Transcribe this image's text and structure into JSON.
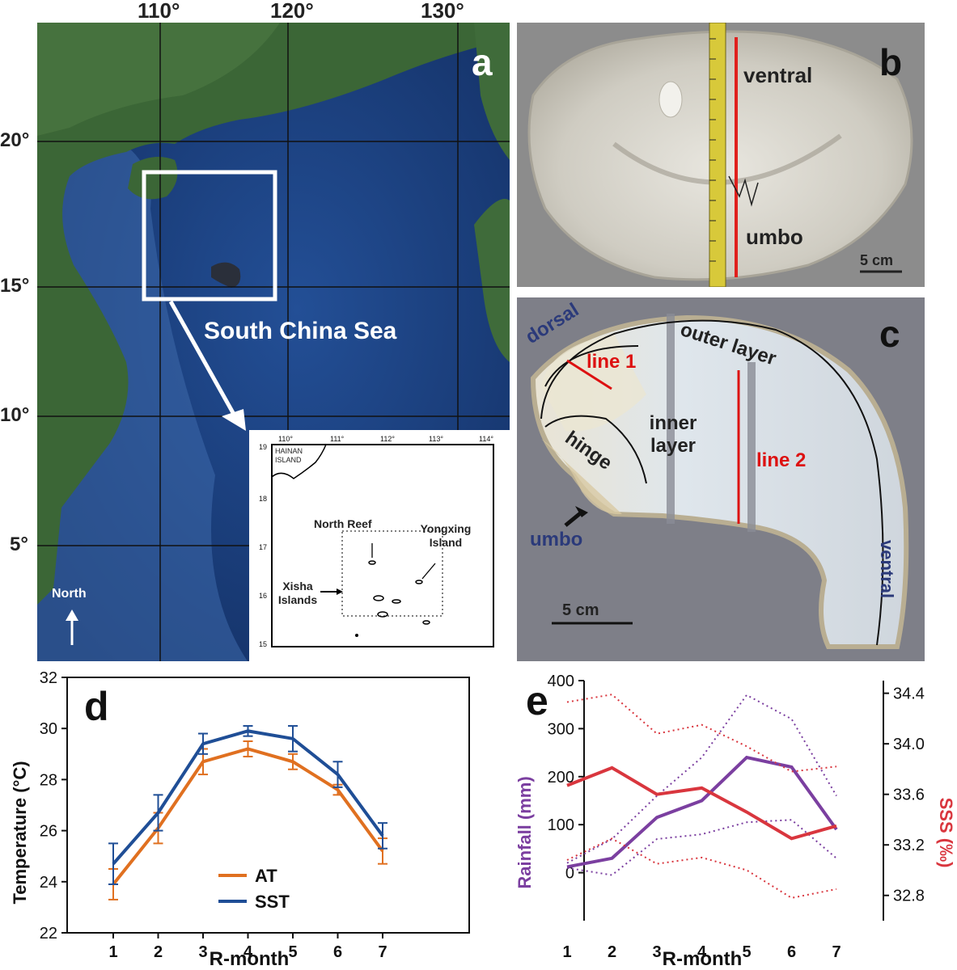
{
  "panel_a": {
    "letter": "a",
    "lon_labels": [
      "110°",
      "120°",
      "130°"
    ],
    "lat_labels": [
      "20°",
      "15°",
      "10°",
      "5°"
    ],
    "sea_label": "South China Sea",
    "north_label": "North",
    "inset": {
      "lon_ticks": [
        "110°",
        "111°",
        "112°",
        "113°",
        "114°"
      ],
      "lat_ticks": [
        "19",
        "18",
        "17",
        "16",
        "15"
      ],
      "hainan": "HAINAN ISLAND",
      "north_reef": "North Reef",
      "yongxing": "Yongxing Island",
      "xisha": "Xisha Islands"
    },
    "colors": {
      "land": "#3f6b3a",
      "sea": "#1b3f7a",
      "box": "#ffffff"
    }
  },
  "panel_b": {
    "letter": "b",
    "ventral": "ventral",
    "umbo": "umbo",
    "scale": "5 cm"
  },
  "panel_c": {
    "letter": "c",
    "dorsal": "dorsal",
    "line1": "line 1",
    "outer_layer": "outer layer",
    "inner_layer": "inner layer",
    "hinge": "hinge",
    "line2": "line 2",
    "umbo": "umbo",
    "ventral": "ventral",
    "scale": "5 cm"
  },
  "chart_data": [
    {
      "panel": "d",
      "type": "line",
      "xlabel": "R-month",
      "ylabel": "Temperature (°C)",
      "x": [
        1,
        2,
        3,
        4,
        5,
        6,
        7
      ],
      "ylim": [
        22,
        32
      ],
      "yticks": [
        22,
        24,
        26,
        28,
        30,
        32
      ],
      "legend_position": "bottom-center",
      "series": [
        {
          "name": "AT",
          "color": "#e07020",
          "values": [
            23.9,
            26.1,
            28.7,
            29.2,
            28.7,
            27.6,
            25.2
          ],
          "err": [
            0.6,
            0.6,
            0.5,
            0.3,
            0.3,
            0.2,
            0.5
          ]
        },
        {
          "name": "SST",
          "color": "#1f4e96",
          "values": [
            24.7,
            26.7,
            29.4,
            29.9,
            29.6,
            28.2,
            25.8
          ],
          "err": [
            0.8,
            0.7,
            0.4,
            0.2,
            0.5,
            0.5,
            0.5
          ]
        }
      ]
    },
    {
      "panel": "e",
      "type": "line",
      "xlabel": "R-month",
      "ylabel_left": "Rainfall (mm)",
      "ylabel_right": "SSS (‰)",
      "x": [
        1,
        2,
        3,
        4,
        5,
        6,
        7
      ],
      "ylim_left": [
        -100,
        400
      ],
      "yticks_left": [
        0,
        100,
        200,
        300,
        400
      ],
      "ylim_right": [
        32.6,
        34.5
      ],
      "yticks_right": [
        32.8,
        33.2,
        33.6,
        34.0,
        34.4
      ],
      "series": [
        {
          "axis": "left",
          "color": "#7b3fa0",
          "values": [
            12,
            30,
            115,
            150,
            240,
            220,
            90
          ],
          "lower": [
            10,
            -5,
            70,
            80,
            105,
            110,
            30
          ],
          "upper": [
            20,
            70,
            160,
            240,
            370,
            320,
            160
          ]
        },
        {
          "axis": "right",
          "color": "#d9363e",
          "values": [
            33.67,
            33.81,
            33.6,
            33.65,
            33.46,
            33.25,
            33.35
          ],
          "lower": [
            33.08,
            33.25,
            33.05,
            33.1,
            33.0,
            32.78,
            32.85
          ],
          "upper": [
            34.33,
            34.39,
            34.08,
            34.15,
            33.98,
            33.78,
            33.82
          ]
        }
      ]
    }
  ]
}
